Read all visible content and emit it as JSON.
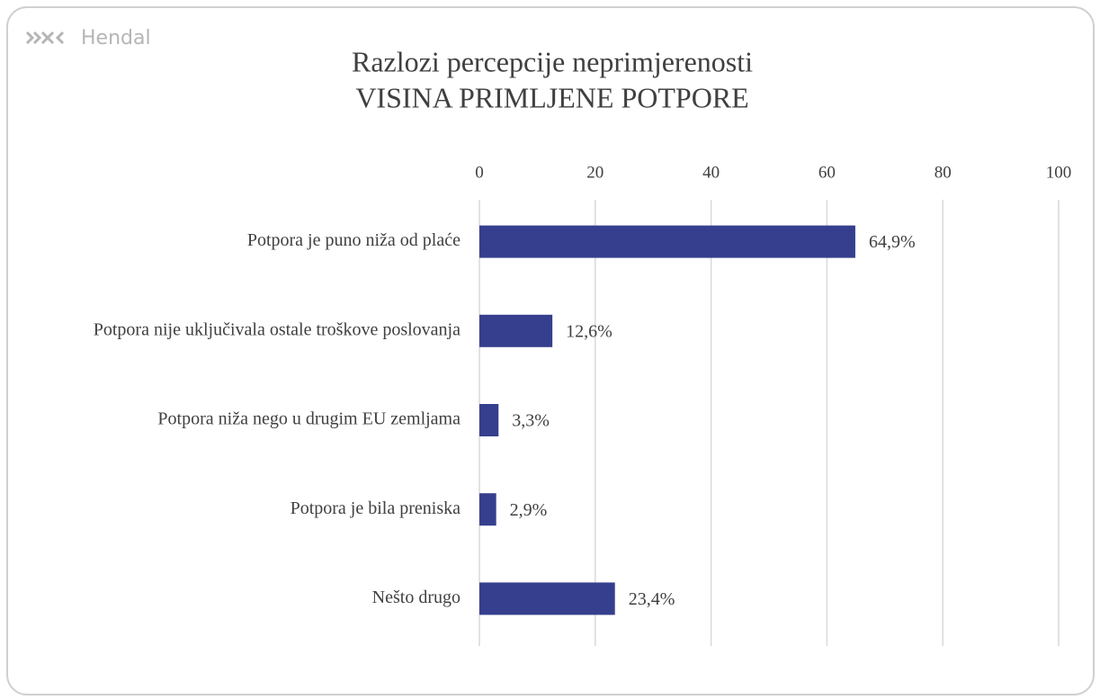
{
  "brand": "Hendal",
  "chart_data": {
    "type": "bar",
    "orientation": "horizontal",
    "title": "Razlozi percepcije neprimjerenosti",
    "subtitle": "VISINA PRIMLJENE POTPORE",
    "categories": [
      "Potpora je puno niža od plaće",
      "Potpora nije uključivala ostale troškove poslovanja",
      "Potpora niža nego u drugim EU zemljama",
      "Potpora je bila preniska",
      "Nešto drugo"
    ],
    "values": [
      64.9,
      12.6,
      3.3,
      2.9,
      23.4
    ],
    "value_labels": [
      "64,9%",
      "12,6%",
      "3,3%",
      "2,9%",
      "23,4%"
    ],
    "color": "#363f8e",
    "xlim": [
      0,
      100
    ],
    "xticks": [
      0,
      20,
      40,
      60,
      80,
      100
    ],
    "grid": true
  }
}
